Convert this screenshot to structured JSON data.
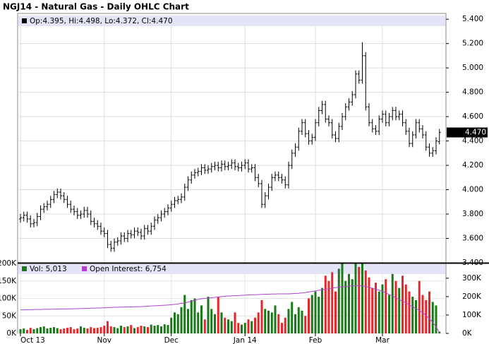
{
  "chart_data": [
    {
      "type": "ohlc",
      "title": "NGJ14 - Natural Gas - Daily OHLC Chart",
      "series": [
        {
          "name": "Op:4.395, Hi:4.498, Lo:4.372, Cl:4.470",
          "color": "#000000",
          "open": [
            3.76,
            3.77,
            3.79,
            3.76,
            3.72,
            3.73,
            3.78,
            3.84,
            3.86,
            3.88,
            3.92,
            3.96,
            3.98,
            3.95,
            3.92,
            3.88,
            3.84,
            3.82,
            3.79,
            3.8,
            3.83,
            3.8,
            3.74,
            3.72,
            3.7,
            3.66,
            3.64,
            3.55,
            3.52,
            3.57,
            3.58,
            3.62,
            3.6,
            3.64,
            3.63,
            3.66,
            3.65,
            3.62,
            3.68,
            3.66,
            3.7,
            3.75,
            3.77,
            3.8,
            3.82,
            3.85,
            3.88,
            3.91,
            3.92,
            3.94,
            4.02,
            4.08,
            4.12,
            4.14,
            4.15,
            4.18,
            4.16,
            4.17,
            4.19,
            4.2,
            4.18,
            4.21,
            4.19,
            4.2,
            4.22,
            4.19,
            4.18,
            4.2,
            4.22,
            4.17,
            4.18,
            4.1,
            4.05,
            3.88,
            3.95,
            4.02,
            4.1,
            4.12,
            4.1,
            4.08,
            4.04,
            4.2,
            4.3,
            4.35,
            4.48,
            4.55,
            4.46,
            4.4,
            4.43,
            4.55,
            4.65,
            4.7,
            4.58,
            4.55,
            4.45,
            4.42,
            4.52,
            4.6,
            4.68,
            4.72,
            4.78,
            4.95,
            4.9,
            5.1,
            4.68,
            4.55,
            4.5,
            4.48,
            4.58,
            4.62,
            4.55,
            4.6,
            4.65,
            4.6,
            4.62,
            4.55,
            4.48,
            4.38,
            4.45,
            4.55,
            4.5,
            4.45,
            4.35,
            4.3,
            4.32,
            4.395
          ],
          "high": [
            3.8,
            3.82,
            3.82,
            3.79,
            3.76,
            3.81,
            3.87,
            3.89,
            3.91,
            3.95,
            3.99,
            4.01,
            4.01,
            3.98,
            3.95,
            3.91,
            3.87,
            3.85,
            3.83,
            3.86,
            3.86,
            3.83,
            3.77,
            3.75,
            3.73,
            3.69,
            3.67,
            3.58,
            3.6,
            3.61,
            3.65,
            3.65,
            3.67,
            3.67,
            3.69,
            3.69,
            3.68,
            3.71,
            3.71,
            3.73,
            3.78,
            3.8,
            3.83,
            3.85,
            3.88,
            3.91,
            3.94,
            3.95,
            3.97,
            4.05,
            4.11,
            4.15,
            4.17,
            4.18,
            4.21,
            4.21,
            4.2,
            4.22,
            4.23,
            4.23,
            4.24,
            4.24,
            4.23,
            4.25,
            4.25,
            4.22,
            4.23,
            4.25,
            4.25,
            4.21,
            4.21,
            4.13,
            4.08,
            3.98,
            4.05,
            4.13,
            4.15,
            4.15,
            4.13,
            4.11,
            4.23,
            4.33,
            4.38,
            4.51,
            4.58,
            4.58,
            4.49,
            4.46,
            4.58,
            4.68,
            4.73,
            4.73,
            4.61,
            4.58,
            4.48,
            4.55,
            4.63,
            4.71,
            4.75,
            4.81,
            4.98,
            4.98,
            5.21,
            5.13,
            4.71,
            4.58,
            4.53,
            4.61,
            4.65,
            4.65,
            4.63,
            4.68,
            4.68,
            4.65,
            4.65,
            4.58,
            4.51,
            4.48,
            4.58,
            4.58,
            4.53,
            4.48,
            4.38,
            4.35,
            4.43,
            4.498
          ],
          "low": [
            3.73,
            3.74,
            3.73,
            3.69,
            3.69,
            3.7,
            3.75,
            3.81,
            3.83,
            3.85,
            3.89,
            3.93,
            3.92,
            3.89,
            3.85,
            3.81,
            3.79,
            3.76,
            3.76,
            3.77,
            3.77,
            3.71,
            3.69,
            3.67,
            3.63,
            3.61,
            3.52,
            3.49,
            3.49,
            3.54,
            3.55,
            3.57,
            3.57,
            3.6,
            3.6,
            3.62,
            3.59,
            3.59,
            3.63,
            3.63,
            3.67,
            3.72,
            3.74,
            3.77,
            3.79,
            3.82,
            3.85,
            3.88,
            3.89,
            3.91,
            3.99,
            4.05,
            4.09,
            4.11,
            4.12,
            4.13,
            4.13,
            4.14,
            4.16,
            4.15,
            4.15,
            4.16,
            4.16,
            4.17,
            4.16,
            4.15,
            4.15,
            4.17,
            4.14,
            4.14,
            4.07,
            4.02,
            3.85,
            3.85,
            3.92,
            3.99,
            4.07,
            4.07,
            4.05,
            4.01,
            4.01,
            4.17,
            4.27,
            4.32,
            4.45,
            4.43,
            4.37,
            4.37,
            4.4,
            4.52,
            4.62,
            4.55,
            4.52,
            4.42,
            4.39,
            4.39,
            4.49,
            4.57,
            4.65,
            4.69,
            4.75,
            4.87,
            4.87,
            4.65,
            4.52,
            4.47,
            4.45,
            4.45,
            4.55,
            4.52,
            4.52,
            4.57,
            4.57,
            4.57,
            4.52,
            4.45,
            4.35,
            4.35,
            4.42,
            4.47,
            4.42,
            4.32,
            4.27,
            4.27,
            4.29,
            4.372
          ],
          "close": [
            3.77,
            3.79,
            3.76,
            3.72,
            3.73,
            3.78,
            3.84,
            3.86,
            3.88,
            3.92,
            3.96,
            3.98,
            3.95,
            3.92,
            3.88,
            3.84,
            3.82,
            3.79,
            3.8,
            3.83,
            3.8,
            3.74,
            3.72,
            3.7,
            3.66,
            3.64,
            3.55,
            3.52,
            3.57,
            3.58,
            3.62,
            3.6,
            3.64,
            3.63,
            3.66,
            3.65,
            3.62,
            3.68,
            3.66,
            3.7,
            3.75,
            3.77,
            3.8,
            3.82,
            3.85,
            3.88,
            3.91,
            3.92,
            3.94,
            4.02,
            4.08,
            4.12,
            4.14,
            4.15,
            4.18,
            4.16,
            4.17,
            4.19,
            4.2,
            4.18,
            4.21,
            4.19,
            4.2,
            4.22,
            4.19,
            4.18,
            4.2,
            4.22,
            4.17,
            4.18,
            4.1,
            4.05,
            3.88,
            3.95,
            4.02,
            4.1,
            4.12,
            4.1,
            4.08,
            4.04,
            4.2,
            4.3,
            4.35,
            4.48,
            4.55,
            4.46,
            4.4,
            4.43,
            4.55,
            4.65,
            4.7,
            4.58,
            4.55,
            4.45,
            4.42,
            4.52,
            4.6,
            4.68,
            4.72,
            4.78,
            4.95,
            4.9,
            5.1,
            4.68,
            4.55,
            4.5,
            4.48,
            4.58,
            4.62,
            4.55,
            4.6,
            4.65,
            4.6,
            4.62,
            4.55,
            4.48,
            4.38,
            4.45,
            4.55,
            4.5,
            4.45,
            4.35,
            4.3,
            4.32,
            4.4,
            4.47
          ]
        }
      ],
      "last_label": "4.470",
      "ylim": [
        3.4,
        5.43
      ],
      "yticks": [
        {
          "value": 3.4,
          "label": "3.400"
        },
        {
          "value": 3.6,
          "label": "3.600"
        },
        {
          "value": 3.8,
          "label": "3.800"
        },
        {
          "value": 4.0,
          "label": "4.000"
        },
        {
          "value": 4.2,
          "label": "4.200"
        },
        {
          "value": 4.4,
          "label": "4.400"
        },
        {
          "value": 4.6,
          "label": "4.600"
        },
        {
          "value": 4.8,
          "label": "4.800"
        },
        {
          "value": 5.0,
          "label": "5.000"
        },
        {
          "value": 5.2,
          "label": "5.200"
        },
        {
          "value": 5.4,
          "label": "5.400"
        }
      ],
      "grid": true
    },
    {
      "type": "volume",
      "categories": [
        "Oct 13",
        null,
        null,
        null,
        null,
        null,
        null,
        null,
        null,
        null,
        null,
        null,
        null,
        null,
        null,
        null,
        null,
        null,
        null,
        null,
        null,
        null,
        null,
        null,
        null,
        "Nov",
        null,
        null,
        null,
        null,
        null,
        null,
        null,
        null,
        null,
        null,
        null,
        null,
        null,
        null,
        null,
        null,
        null,
        null,
        null,
        "Dec",
        null,
        null,
        null,
        null,
        null,
        null,
        null,
        null,
        null,
        null,
        null,
        null,
        null,
        null,
        null,
        null,
        null,
        null,
        null,
        null,
        null,
        "Jan 14",
        null,
        null,
        null,
        null,
        null,
        null,
        null,
        null,
        null,
        null,
        null,
        null,
        null,
        null,
        null,
        null,
        null,
        null,
        null,
        null,
        "Feb",
        null,
        null,
        null,
        null,
        null,
        null,
        null,
        null,
        null,
        null,
        null,
        null,
        null,
        null,
        null,
        null,
        null,
        null,
        null,
        "Mar",
        null,
        null,
        null,
        null,
        null,
        null,
        null,
        null,
        null,
        null,
        null,
        null,
        null,
        null,
        null,
        null,
        null
      ],
      "series": [
        {
          "name": "Vol: 5,013",
          "color": "#1a7a1a",
          "up_color": "#1a7a1a",
          "down_color": "#e8262a",
          "values": [
            12000,
            14000,
            10000,
            16000,
            12000,
            15000,
            18000,
            20000,
            14000,
            16000,
            18000,
            15000,
            12000,
            14000,
            16000,
            18000,
            12000,
            14000,
            20000,
            16000,
            14000,
            18000,
            15000,
            16000,
            18000,
            22000,
            35000,
            20000,
            18000,
            15000,
            22000,
            18000,
            20000,
            24000,
            15000,
            18000,
            22000,
            20000,
            18000,
            25000,
            22000,
            24000,
            20000,
            26000,
            24000,
            45000,
            60000,
            55000,
            75000,
            110000,
            70000,
            95000,
            100000,
            60000,
            80000,
            40000,
            105000,
            70000,
            55000,
            105000,
            60000,
            45000,
            40000,
            35000,
            60000,
            30000,
            25000,
            30000,
            40000,
            35000,
            45000,
            60000,
            95000,
            70000,
            65000,
            60000,
            80000,
            55000,
            30000,
            45000,
            70000,
            90000,
            55000,
            75000,
            65000,
            50000,
            100000,
            110000,
            120000,
            105000,
            130000,
            165000,
            150000,
            175000,
            120000,
            185000,
            200000,
            150000,
            170000,
            155000,
            200000,
            190000,
            205000,
            180000,
            160000,
            130000,
            145000,
            120000,
            140000,
            155000,
            110000,
            170000,
            150000,
            130000,
            165000,
            140000,
            120000,
            105000,
            95000,
            150000,
            110000,
            95000,
            120000,
            90000,
            80000,
            5013
          ]
        },
        {
          "name": "Open Interest: 6,754",
          "color": "#b040d0",
          "axis": "y2",
          "values": [
            128000,
            128000,
            129000,
            129000,
            130000,
            130000,
            130000,
            131000,
            131000,
            131000,
            132000,
            132000,
            133000,
            133000,
            133000,
            134000,
            134000,
            135000,
            135000,
            136000,
            136000,
            137000,
            137000,
            138000,
            138000,
            139000,
            140000,
            141000,
            142000,
            142000,
            143000,
            143000,
            144000,
            144000,
            145000,
            145000,
            146000,
            147000,
            148000,
            149000,
            150000,
            151000,
            152000,
            153000,
            154000,
            156000,
            158000,
            160000,
            163000,
            166000,
            170000,
            175000,
            180000,
            185000,
            188000,
            190000,
            192000,
            194000,
            196000,
            198000,
            200000,
            202000,
            203000,
            204000,
            205000,
            206000,
            207000,
            208000,
            209000,
            210000,
            210000,
            211000,
            212000,
            213000,
            213000,
            214000,
            214000,
            215000,
            215000,
            215000,
            215000,
            216000,
            217000,
            218000,
            220000,
            222000,
            225000,
            228000,
            231000,
            234000,
            237000,
            240000,
            243000,
            246000,
            249000,
            251000,
            253000,
            255000,
            257000,
            258000,
            259000,
            260000,
            258000,
            255000,
            250000,
            245000,
            240000,
            235000,
            228000,
            220000,
            212000,
            203000,
            194000,
            185000,
            175000,
            165000,
            155000,
            145000,
            135000,
            125000,
            112000,
            98000,
            80000,
            60000,
            35000,
            6754
          ]
        }
      ],
      "ylim": [
        0,
        200000
      ],
      "yticks": [
        {
          "value": 0,
          "label": "0K"
        },
        {
          "value": 50000,
          "label": "50K"
        },
        {
          "value": 100000,
          "label": "100K"
        },
        {
          "value": 150000,
          "label": "150K"
        },
        {
          "value": 200000,
          "label": "200K"
        }
      ],
      "y2lim": [
        0,
        380000
      ],
      "y2ticks": [
        {
          "value": 0,
          "label": "0K"
        },
        {
          "value": 100000,
          "label": "100K"
        },
        {
          "value": 200000,
          "label": "200K"
        },
        {
          "value": 300000,
          "label": "300K"
        }
      ],
      "grid": true
    }
  ]
}
